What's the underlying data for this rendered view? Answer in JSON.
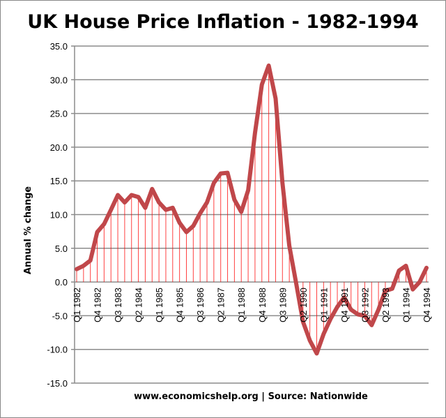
{
  "chart_data": {
    "type": "line",
    "title": "UK House Price Inflation - 1982-1994",
    "ylabel": "Annual % change",
    "xlabel": "www.economicshelp.org | Source: Nationwide",
    "ylim": [
      -15,
      35
    ],
    "yticks": [
      "35.0",
      "30.0",
      "25.0",
      "20.0",
      "15.0",
      "10.0",
      "5.0",
      "0.0",
      "-5.0",
      "-10.0",
      "-15.0"
    ],
    "ytick_values": [
      35,
      30,
      25,
      20,
      15,
      10,
      5,
      0,
      -5,
      -10,
      -15
    ],
    "grid": true,
    "drop_lines": true,
    "x_tick_every": 3,
    "x": [
      "Q1 1982",
      "Q2 1982",
      "Q3 1982",
      "Q4 1982",
      "Q1 1983",
      "Q2 1983",
      "Q3 1983",
      "Q4 1983",
      "Q1 1984",
      "Q2 1984",
      "Q3 1984",
      "Q4 1984",
      "Q1 1985",
      "Q2 1985",
      "Q3 1985",
      "Q4 1985",
      "Q1 1986",
      "Q2 1986",
      "Q3 1986",
      "Q4 1986",
      "Q1 1987",
      "Q2 1987",
      "Q3 1987",
      "Q4 1987",
      "Q1 1988",
      "Q2 1988",
      "Q3 1988",
      "Q4 1988",
      "Q1 1989",
      "Q2 1989",
      "Q3 1989",
      "Q4 1989",
      "Q1 1990",
      "Q2 1990",
      "Q3 1990",
      "Q4 1990",
      "Q1 1991",
      "Q2 1991",
      "Q3 1991",
      "Q4 1991",
      "Q1 1992",
      "Q2 1992",
      "Q3 1992",
      "Q4 1992",
      "Q1 1993",
      "Q2 1993",
      "Q3 1993",
      "Q4 1993",
      "Q1 1994",
      "Q2 1994",
      "Q3 1994",
      "Q4 1994"
    ],
    "series": [
      {
        "values": [
          1.9,
          2.4,
          3.2,
          7.4,
          8.6,
          10.7,
          12.9,
          11.8,
          12.9,
          12.6,
          11.0,
          13.8,
          11.8,
          10.7,
          11.0,
          8.8,
          7.4,
          8.3,
          10.2,
          11.8,
          14.7,
          16.1,
          16.2,
          12.2,
          10.4,
          13.6,
          22.1,
          29.3,
          32.1,
          27.2,
          14.7,
          5.4,
          -0.2,
          -5.9,
          -8.7,
          -10.6,
          -7.7,
          -5.5,
          -3.7,
          -2.3,
          -4.1,
          -4.8,
          -5.0,
          -6.4,
          -4.1,
          -1.3,
          -1.0,
          1.7,
          2.4,
          -1.1,
          0.0,
          2.1
        ]
      }
    ],
    "colors": {
      "line": "#c0474a",
      "drop": "#ff0000",
      "grid": "#8c8c8c"
    }
  }
}
